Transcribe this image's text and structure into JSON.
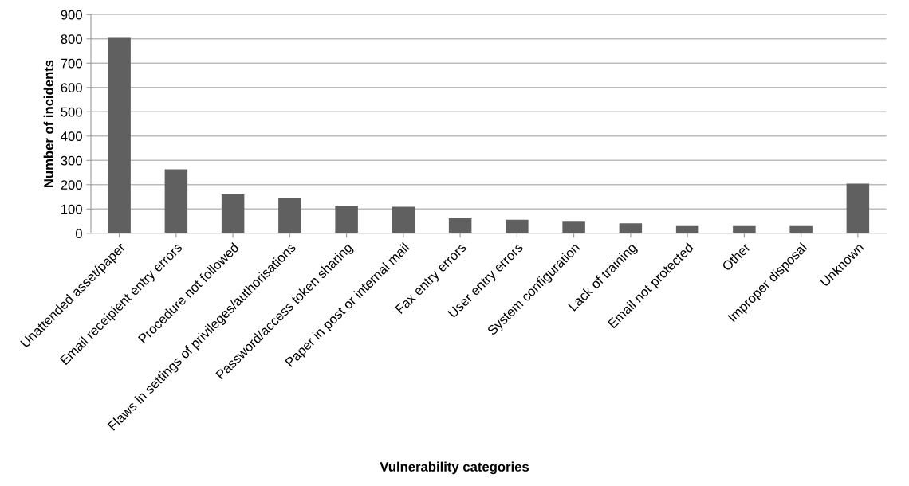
{
  "chart_data": {
    "type": "bar",
    "xlabel": "Vulnerability categories",
    "ylabel": "Number of incidents",
    "categories": [
      "Unattended asset/paper",
      "Email receipient entry errors",
      "Procedure not followed",
      "Flaws in settings of privileges/authorisations",
      "Password/access token sharing",
      "Paper in post or internal mail",
      "Fax entry errors",
      "User entry errors",
      "System configuration",
      "Lack of training",
      "Email not protected",
      "Other",
      "Improper disposal",
      "Unknown"
    ],
    "values": [
      804,
      263,
      161,
      147,
      114,
      109,
      62,
      56,
      48,
      41,
      30,
      30,
      30,
      204
    ],
    "color": "#606060",
    "ylim": [
      0,
      900
    ],
    "yticks": [
      0,
      100,
      200,
      300,
      400,
      500,
      600,
      700,
      800,
      900
    ],
    "grid": "y",
    "legend": false
  }
}
